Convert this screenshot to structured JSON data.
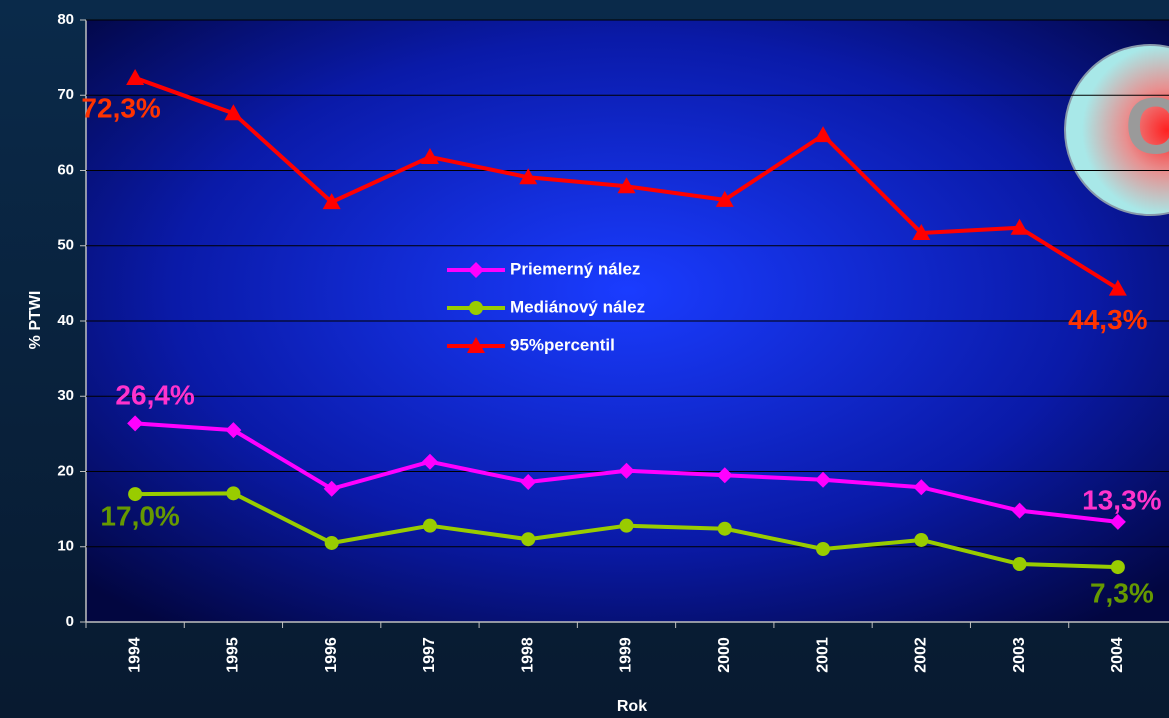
{
  "chart_data": {
    "type": "line",
    "categories": [
      "1994",
      "1995",
      "1996",
      "1997",
      "1998",
      "1999",
      "2000",
      "2001",
      "2002",
      "2003",
      "2004"
    ],
    "series": [
      {
        "name": "Priemerný nález",
        "color": "#ff00ff",
        "marker": "diamond",
        "label_color": "#ff33cc",
        "values": [
          26.4,
          25.5,
          17.7,
          21.3,
          18.6,
          20.1,
          19.5,
          18.9,
          17.9,
          14.8,
          13.3
        ],
        "value_labels": [
          "26,4%",
          null,
          null,
          null,
          null,
          null,
          null,
          null,
          null,
          null,
          "13,3%"
        ]
      },
      {
        "name": "Mediánový nález",
        "color": "#99cc00",
        "marker": "circle",
        "label_color": "#669900",
        "values": [
          17.0,
          17.1,
          10.5,
          12.8,
          11.0,
          12.8,
          12.4,
          9.7,
          10.9,
          7.7,
          7.3
        ],
        "value_labels": [
          "17,0%",
          null,
          null,
          null,
          null,
          null,
          null,
          null,
          null,
          null,
          "7,3%"
        ]
      },
      {
        "name": "95%percentil",
        "color": "#ff0000",
        "marker": "triangle",
        "label_color": "#ff3300",
        "values": [
          72.3,
          67.6,
          55.8,
          61.8,
          59.1,
          57.9,
          56.1,
          64.7,
          51.7,
          52.4,
          44.3
        ],
        "value_labels": [
          "72,3%",
          null,
          null,
          null,
          null,
          null,
          null,
          null,
          null,
          null,
          "44,3%"
        ]
      }
    ],
    "xlabel": "Rok",
    "ylabel": "% PTWI",
    "ylim": [
      0,
      80
    ],
    "yticks": [
      0,
      10,
      20,
      30,
      40,
      50,
      60,
      70,
      80
    ],
    "grid": true,
    "annotation": "Cd"
  }
}
